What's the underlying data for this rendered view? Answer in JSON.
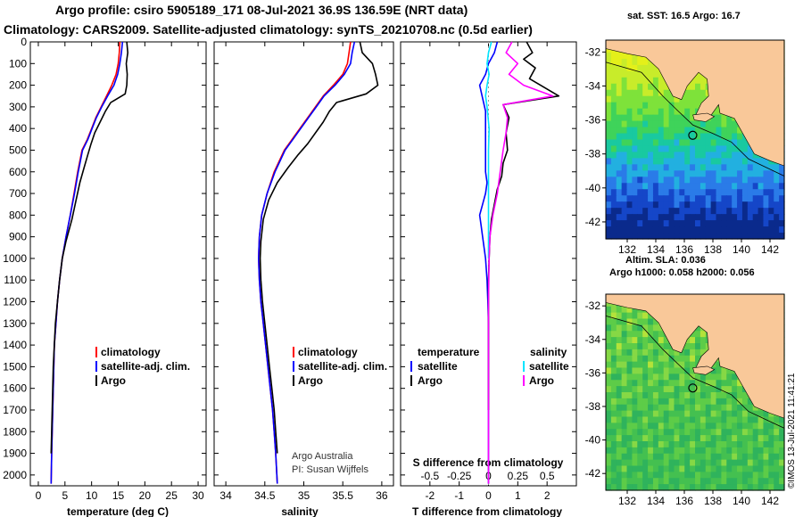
{
  "title_line1": "Argo profile: csiro 5905189_171 08-Jul-2021 36.9S 136.59E (NRT data)",
  "title_line2": "Climatology: CARS2009. Satellite-adjusted climatology: synTS_20210708.nc (0.5d earlier)",
  "colors": {
    "climatology": "#ff0000",
    "satellite": "#0000ff",
    "argo": "#000000",
    "salinity_satellite": "#00e5ff",
    "salinity_argo": "#ff00ff",
    "land": "#f9c899"
  },
  "chart_data": [
    {
      "type": "line",
      "name": "temperature profile",
      "xlabel": "temperature (deg C)",
      "ylabel": "",
      "xlim": [
        -1.5,
        31.5
      ],
      "ylim": [
        2050,
        0
      ],
      "xticks": [
        "0",
        "5",
        "10",
        "15",
        "20",
        "25",
        "30"
      ],
      "yticks": [
        "0",
        "100",
        "200",
        "300",
        "400",
        "500",
        "600",
        "700",
        "800",
        "900",
        "1000",
        "1100",
        "1200",
        "1300",
        "1400",
        "1500",
        "1600",
        "1700",
        "1800",
        "1900",
        "2000"
      ],
      "legend": [
        "climatology",
        "satellite-adj. clim.",
        "Argo"
      ],
      "series": [
        {
          "name": "climatology",
          "color": "#ff0000",
          "x": [
            15.3,
            15.2,
            15.0,
            14.6,
            13.8,
            12.8,
            11.8,
            10.8,
            10.0,
            9.2,
            8.2,
            7.4,
            6.7,
            6.0,
            5.2,
            4.5,
            4.0,
            3.6,
            3.3,
            3.0,
            2.9,
            2.8,
            2.7,
            2.6,
            2.5,
            2.4
          ],
          "y": [
            0,
            50,
            100,
            150,
            200,
            250,
            300,
            350,
            400,
            450,
            500,
            600,
            700,
            800,
            900,
            1000,
            1100,
            1200,
            1300,
            1400,
            1500,
            1600,
            1700,
            1800,
            1900,
            2040
          ]
        },
        {
          "name": "satellite-adj. clim.",
          "color": "#0000ff",
          "x": [
            15.8,
            15.6,
            15.3,
            14.9,
            14.2,
            13.0,
            11.9,
            10.9,
            10.1,
            9.3,
            8.3,
            7.5,
            6.8,
            6.0,
            5.2,
            4.5,
            4.0,
            3.6,
            3.3,
            3.0,
            2.9,
            2.8,
            2.7,
            2.6,
            2.5,
            2.4
          ],
          "y": [
            0,
            50,
            100,
            150,
            200,
            250,
            300,
            350,
            400,
            450,
            500,
            600,
            700,
            800,
            900,
            1000,
            1100,
            1200,
            1300,
            1400,
            1500,
            1600,
            1700,
            1800,
            1900,
            2040
          ]
        },
        {
          "name": "Argo",
          "color": "#000000",
          "x": [
            16.6,
            16.8,
            16.5,
            16.7,
            16.6,
            16.3,
            13.6,
            12.6,
            11.6,
            10.6,
            9.9,
            9.3,
            8.6,
            7.8,
            7.1,
            6.3,
            5.2,
            4.5,
            4.0,
            3.6,
            3.2,
            3.0,
            2.8,
            2.7,
            2.6,
            2.5,
            2.4
          ],
          "y": [
            0,
            50,
            100,
            150,
            200,
            240,
            280,
            320,
            370,
            420,
            470,
            520,
            580,
            650,
            730,
            820,
            920,
            1000,
            1100,
            1200,
            1300,
            1400,
            1500,
            1600,
            1700,
            1800,
            1900
          ]
        }
      ]
    },
    {
      "type": "line",
      "name": "salinity profile",
      "xlabel": "salinity",
      "xlim": [
        33.85,
        36.15
      ],
      "ylim": [
        2050,
        0
      ],
      "xticks": [
        "34",
        "34.5",
        "35",
        "35.5",
        "36"
      ],
      "legend": [
        "climatology",
        "satellite-adj. clim.",
        "Argo"
      ],
      "annotations": [
        "Argo Australia",
        "PI: Susan Wijffels"
      ],
      "series": [
        {
          "name": "climatology",
          "color": "#ff0000",
          "x": [
            35.6,
            35.58,
            35.56,
            35.5,
            35.38,
            35.25,
            35.15,
            35.05,
            34.95,
            34.85,
            34.75,
            34.62,
            34.53,
            34.46,
            34.43,
            34.42,
            34.43,
            34.45,
            34.48,
            34.51,
            34.54,
            34.57,
            34.6,
            34.62,
            34.64,
            34.66
          ],
          "y": [
            0,
            50,
            100,
            150,
            200,
            250,
            300,
            350,
            400,
            450,
            500,
            600,
            700,
            800,
            900,
            1000,
            1100,
            1200,
            1300,
            1400,
            1500,
            1600,
            1700,
            1800,
            1900,
            2040
          ]
        },
        {
          "name": "satellite-adj. clim.",
          "color": "#0000ff",
          "x": [
            35.65,
            35.62,
            35.6,
            35.52,
            35.4,
            35.26,
            35.16,
            35.06,
            34.96,
            34.86,
            34.76,
            34.63,
            34.53,
            34.46,
            34.43,
            34.42,
            34.43,
            34.45,
            34.48,
            34.51,
            34.54,
            34.57,
            34.6,
            34.62,
            34.64,
            34.66
          ],
          "y": [
            0,
            50,
            100,
            150,
            200,
            250,
            300,
            350,
            400,
            450,
            500,
            600,
            700,
            800,
            900,
            1000,
            1100,
            1200,
            1300,
            1400,
            1500,
            1600,
            1700,
            1800,
            1900,
            2040
          ]
        },
        {
          "name": "Argo",
          "color": "#000000",
          "x": [
            35.72,
            35.75,
            35.88,
            35.92,
            35.95,
            35.8,
            35.42,
            35.33,
            35.25,
            35.15,
            35.05,
            34.93,
            34.8,
            34.66,
            34.55,
            34.48,
            34.45,
            34.44,
            34.45,
            34.47,
            34.5,
            34.53,
            34.56,
            34.59,
            34.62,
            34.64,
            34.66
          ],
          "y": [
            0,
            50,
            100,
            150,
            200,
            240,
            280,
            320,
            370,
            420,
            470,
            520,
            580,
            650,
            730,
            820,
            920,
            1000,
            1100,
            1200,
            1300,
            1400,
            1500,
            1600,
            1700,
            1800,
            1900
          ]
        }
      ]
    },
    {
      "type": "line",
      "name": "difference from climatology",
      "xlabel": "T difference from climatology",
      "xlabel_top": "S difference from climatology",
      "xlim": [
        -3,
        3
      ],
      "ylim": [
        2050,
        0
      ],
      "xticks": [
        "-2",
        "-1",
        "0",
        "1",
        "2"
      ],
      "xticks_top": [
        "-0.5",
        "-0.25",
        "0",
        "0.25",
        "0.5"
      ],
      "legend_temperature": {
        "title": "temperature",
        "items": [
          "satellite",
          "Argo"
        ]
      },
      "legend_salinity": {
        "title": "salinity",
        "items": [
          "satellite",
          "Argo"
        ]
      },
      "series": [
        {
          "name": "temperature satellite",
          "color": "#0000ff",
          "x": [
            0.3,
            0.2,
            0.0,
            -0.1,
            -0.3,
            -0.2,
            -0.1,
            -0.1,
            -0.1,
            -0.1,
            -0.05,
            -0.1,
            -0.2,
            -0.3,
            -0.25,
            -0.2,
            -0.1,
            -0.05,
            -0.02,
            0,
            0,
            0,
            0,
            0
          ],
          "y": [
            0,
            50,
            100,
            150,
            200,
            260,
            320,
            400,
            500,
            600,
            650,
            700,
            750,
            800,
            850,
            900,
            1000,
            1100,
            1200,
            1300,
            1400,
            1600,
            1800,
            2040
          ]
        },
        {
          "name": "temperature Argo",
          "color": "#000000",
          "x": [
            1.3,
            1.5,
            1.2,
            1.6,
            1.4,
            2.4,
            0.5,
            0.7,
            0.6,
            0.65,
            0.5,
            0.45,
            0.3,
            0.2,
            0.1,
            0.05,
            0.02,
            0,
            0,
            0,
            0
          ],
          "y": [
            0,
            50,
            80,
            120,
            170,
            250,
            290,
            350,
            420,
            500,
            560,
            620,
            680,
            750,
            820,
            900,
            1000,
            1100,
            1300,
            1500,
            1700
          ]
        },
        {
          "name": "salinity satellite",
          "color": "#00e5ff",
          "x": [
            0.1,
            0.0,
            -0.05,
            0.02,
            -0.05,
            -0.1,
            -0.05,
            0.02,
            0.0,
            0.0,
            0,
            0
          ],
          "y": [
            0,
            50,
            100,
            150,
            200,
            250,
            300,
            400,
            500,
            600,
            800,
            1000
          ]
        },
        {
          "name": "salinity Argo",
          "color": "#ff00ff",
          "x": [
            0.8,
            0.6,
            1.0,
            0.7,
            1.2,
            2.2,
            0.5,
            0.65,
            0.6,
            0.5,
            0.4,
            0.3,
            0.15,
            0.05,
            0.02,
            0,
            0,
            0
          ],
          "y": [
            0,
            50,
            100,
            150,
            200,
            250,
            290,
            350,
            420,
            500,
            600,
            700,
            800,
            900,
            1000,
            1200,
            1500,
            2040
          ]
        }
      ]
    },
    {
      "type": "heatmap",
      "name": "sat. SST map",
      "title": "sat. SST: 16.5 Argo: 16.7",
      "xticks": [
        "132",
        "134",
        "136",
        "138",
        "140",
        "142"
      ],
      "yticks": [
        "-32",
        "-34",
        "-36",
        "-38",
        "-40",
        "-42"
      ],
      "xlim": [
        130.5,
        143
      ],
      "ylim": [
        -43,
        -31.3
      ],
      "float_position": {
        "lon": 136.59,
        "lat": -36.9
      }
    },
    {
      "type": "heatmap",
      "name": "Altim. SLA map",
      "title": "Altim. SLA: 0.036",
      "subtitle": "Argo h1000: 0.058 h2000: 0.056",
      "xticks": [
        "132",
        "134",
        "136",
        "138",
        "140",
        "142"
      ],
      "yticks": [
        "-32",
        "-34",
        "-36",
        "-38",
        "-40",
        "-42"
      ],
      "xlim": [
        130.5,
        143
      ],
      "ylim": [
        -43,
        -31.3
      ],
      "float_position": {
        "lon": 136.59,
        "lat": -36.9
      }
    }
  ],
  "credit": "©IMOS 13-Jul-2021 11:41:21"
}
